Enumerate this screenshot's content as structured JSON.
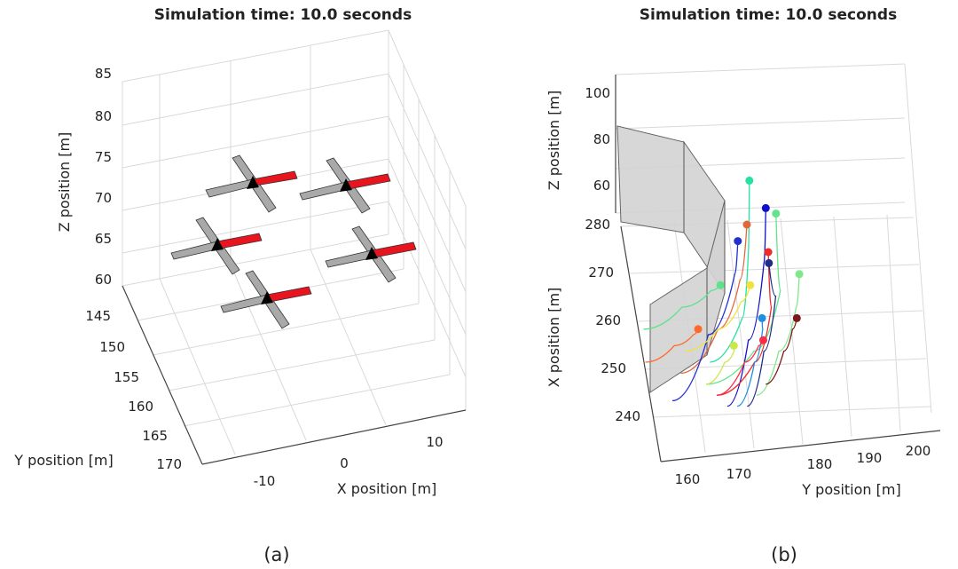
{
  "chart_data": [
    {
      "panel": "(a)",
      "type": "scatter",
      "title": "Simulation time: 10.0 seconds",
      "xlabel": "X position [m]",
      "ylabel": "Y position [m]",
      "zlabel": "Z position [m]",
      "xticks": [
        "-10",
        "0",
        "10"
      ],
      "yticks": [
        "145",
        "150",
        "155",
        "160",
        "165",
        "170"
      ],
      "zticks": [
        "60",
        "65",
        "70",
        "75",
        "80",
        "85"
      ],
      "xlim": [
        -15,
        15
      ],
      "ylim": [
        145,
        170
      ],
      "zlim": [
        60,
        85
      ],
      "grid": true,
      "series": [
        {
          "points": [
            {
              "x": -7,
              "y": 149,
              "z": 73
            },
            {
              "x": 6,
              "y": 149,
              "z": 72
            },
            {
              "x": -8,
              "y": 157,
              "z": 71
            },
            {
              "x": 7,
              "y": 158,
              "z": 69
            },
            {
              "x": 0,
              "y": 163,
              "z": 66
            }
          ]
        }
      ],
      "colors": {
        "frame": "#a9a9a9",
        "heading_arm": "#e8141e",
        "body": "#000000"
      }
    },
    {
      "panel": "(b)",
      "type": "line",
      "title": "Simulation time: 10.0 seconds",
      "xlabel": "Y position [m]",
      "ylabel": "X position [m]",
      "zlabel": "Z position [m]",
      "xticks": [
        "160",
        "170",
        "180",
        "190",
        "200"
      ],
      "yticks": [
        "240",
        "250",
        "260",
        "270",
        "280"
      ],
      "zticks": [
        "60",
        "80",
        "100"
      ],
      "xlim": [
        155,
        205
      ],
      "ylim": [
        235,
        285
      ],
      "zlim": [
        50,
        105
      ],
      "grid": true,
      "obstacle_color": "#d3d3d3",
      "series": [
        {
          "color": "#22e3a0",
          "points": [
            [
              163,
              250
            ],
            [
              170,
              258
            ],
            [
              172,
              270
            ],
            [
              173,
              283
            ]
          ]
        },
        {
          "color": "#1010c8",
          "points": [
            [
              166,
              242
            ],
            [
              171,
              254
            ],
            [
              175,
              268
            ],
            [
              176,
              278
            ]
          ]
        },
        {
          "color": "#62e58a",
          "points": [
            [
              162,
              246
            ],
            [
              172,
              252
            ],
            [
              178,
              263
            ],
            [
              178,
              277
            ]
          ]
        },
        {
          "color": "#e3653a",
          "points": [
            [
              157,
              248
            ],
            [
              165,
              256
            ],
            [
              170,
              265
            ],
            [
              172,
              275
            ]
          ]
        },
        {
          "color": "#2230d0",
          "points": [
            [
              155,
              243
            ],
            [
              163,
              255
            ],
            [
              169,
              266
            ],
            [
              170,
              272
            ]
          ]
        },
        {
          "color": "#ee2a2a",
          "points": [
            [
              164,
              244
            ],
            [
              172,
              250
            ],
            [
              176,
              260
            ],
            [
              176,
              270
            ]
          ]
        },
        {
          "color": "#1f2c8a",
          "points": [
            [
              170,
              242
            ],
            [
              174,
              252
            ],
            [
              177,
              262
            ],
            [
              176,
              268
            ]
          ]
        },
        {
          "color": "#7fe88a",
          "points": [
            [
              172,
              244
            ],
            [
              177,
              252
            ],
            [
              181,
              260
            ],
            [
              182,
              266
            ]
          ]
        },
        {
          "color": "#f2e23a",
          "points": [
            [
              158,
              252
            ],
            [
              165,
              256
            ],
            [
              170,
              261
            ],
            [
              172,
              264
            ]
          ]
        },
        {
          "color": "#5ee28a",
          "points": [
            [
              150,
              256
            ],
            [
              158,
              260
            ],
            [
              164,
              263
            ],
            [
              166,
              264
            ]
          ]
        },
        {
          "color": "#1e8fe0",
          "points": [
            [
              168,
              242
            ],
            [
              172,
              250
            ],
            [
              174,
              256
            ],
            [
              174,
              258
            ]
          ]
        },
        {
          "color": "#7a1a1a",
          "points": [
            [
              174,
              246
            ],
            [
              178,
              252
            ],
            [
              180,
              256
            ],
            [
              181,
              258
            ]
          ]
        },
        {
          "color": "#ff6a2a",
          "points": [
            [
              150,
              250
            ],
            [
              156,
              253
            ],
            [
              160,
              255
            ],
            [
              161,
              256
            ]
          ]
        },
        {
          "color": "#ff2a44",
          "points": [
            [
              164,
              244
            ],
            [
              170,
              250
            ],
            [
              173,
              253
            ],
            [
              174,
              254
            ]
          ]
        },
        {
          "color": "#cbe84a",
          "points": [
            [
              162,
              246
            ],
            [
              166,
              250
            ],
            [
              168,
              252
            ],
            [
              168,
              253
            ]
          ]
        }
      ]
    }
  ],
  "captions": {
    "a": "(a)",
    "b": "(b)"
  }
}
